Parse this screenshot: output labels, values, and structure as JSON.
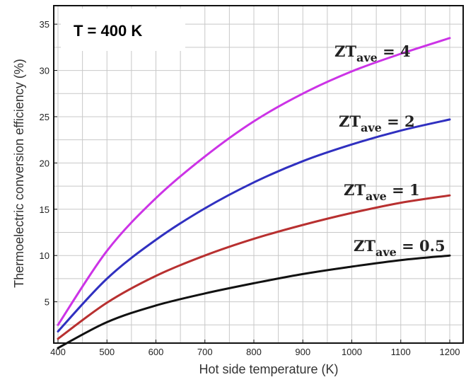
{
  "chart_data": {
    "type": "line",
    "condition_label": "T = 400 K",
    "xlabel": "Hot side temperature (K)",
    "ylabel": "Thermoelectric conversion efficiency (%)",
    "xlim": [
      400,
      1200
    ],
    "ylim": [
      0,
      37
    ],
    "xticks": [
      "400",
      "500",
      "600",
      "700",
      "800",
      "900",
      "1000",
      "1100",
      "1200"
    ],
    "yticks": [
      "5",
      "10",
      "15",
      "20",
      "25",
      "30",
      "35"
    ],
    "grid": true,
    "x": [
      400,
      500,
      600,
      700,
      800,
      900,
      1000,
      1100,
      1200
    ],
    "series": [
      {
        "name": "ZTave = 4",
        "label_main": "ZT",
        "label_sub": "ave",
        "label_tail": " = 4",
        "color": "#cc33e6",
        "values": [
          2.5,
          10.5,
          16.2,
          20.7,
          24.5,
          27.5,
          29.9,
          31.8,
          33.5
        ]
      },
      {
        "name": "ZTave = 2",
        "label_main": "ZT",
        "label_sub": "ave",
        "label_tail": " = 2",
        "color": "#3030c0",
        "values": [
          1.8,
          7.5,
          11.7,
          15.1,
          17.9,
          20.2,
          22.0,
          23.5,
          24.7
        ]
      },
      {
        "name": "ZTave = 1",
        "label_main": "ZT",
        "label_sub": "ave",
        "label_tail": " = 1",
        "color": "#b83030",
        "values": [
          1.0,
          4.9,
          7.8,
          10.0,
          11.8,
          13.3,
          14.6,
          15.7,
          16.5
        ]
      },
      {
        "name": "ZTave = 0.5",
        "label_main": "ZT",
        "label_sub": "ave",
        "label_tail": " = 0.5",
        "color": "#111111",
        "values": [
          0.0,
          2.8,
          4.6,
          5.9,
          7.0,
          8.0,
          8.8,
          9.5,
          10.0
        ]
      }
    ]
  }
}
